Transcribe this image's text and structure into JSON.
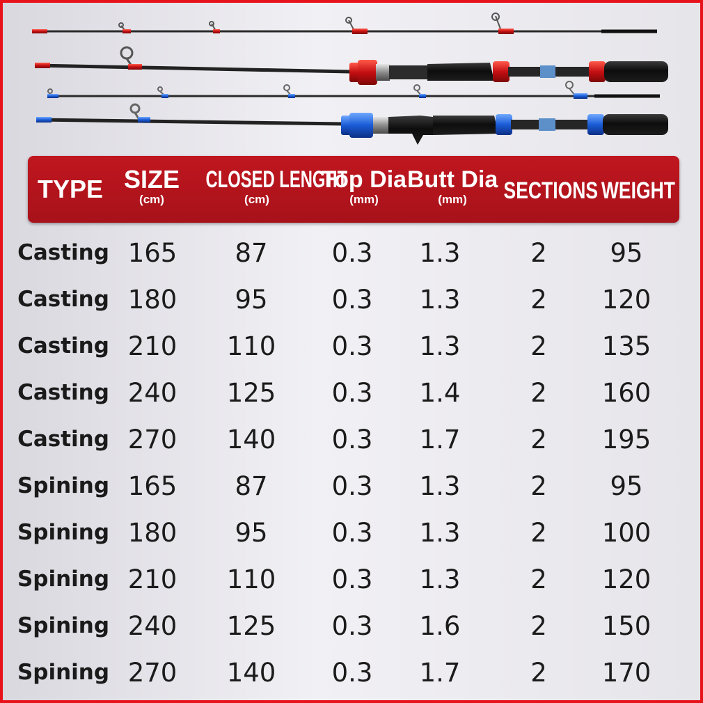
{
  "colors": {
    "border": "#e8121a",
    "header_background": "#b3141c",
    "header_text": "#ffffff",
    "casting_accent": "#d01818",
    "spinning_accent": "#1f5ad8",
    "text": "#1b1b1b"
  },
  "product_image": {
    "rods": [
      {
        "kind": "casting-tip",
        "accent": "red"
      },
      {
        "kind": "casting-butt",
        "accent": "red"
      },
      {
        "kind": "spinning-tip",
        "accent": "blue"
      },
      {
        "kind": "spinning-butt",
        "accent": "blue"
      }
    ]
  },
  "table": {
    "headers": [
      {
        "label": "TYPE",
        "unit": ""
      },
      {
        "label": "SIZE",
        "unit": "(cm)"
      },
      {
        "label": "CLOSED LENGHT",
        "unit": "(cm)"
      },
      {
        "label": "Top Dia",
        "unit": "(mm)"
      },
      {
        "label": "Butt Dia",
        "unit": "(mm)"
      },
      {
        "label": "SECTIONS",
        "unit": ""
      },
      {
        "label": "WEIGHT",
        "unit": ""
      }
    ],
    "rows": [
      [
        "Casting",
        "165",
        "87",
        "0.3",
        "1.3",
        "2",
        "95"
      ],
      [
        "Casting",
        "180",
        "95",
        "0.3",
        "1.3",
        "2",
        "120"
      ],
      [
        "Casting",
        "210",
        "110",
        "0.3",
        "1.3",
        "2",
        "135"
      ],
      [
        "Casting",
        "240",
        "125",
        "0.3",
        "1.4",
        "2",
        "160"
      ],
      [
        "Casting",
        "270",
        "140",
        "0.3",
        "1.7",
        "2",
        "195"
      ],
      [
        "Spining",
        "165",
        "87",
        "0.3",
        "1.3",
        "2",
        "95"
      ],
      [
        "Spining",
        "180",
        "95",
        "0.3",
        "1.3",
        "2",
        "100"
      ],
      [
        "Spining",
        "210",
        "110",
        "0.3",
        "1.3",
        "2",
        "120"
      ],
      [
        "Spining",
        "240",
        "125",
        "0.3",
        "1.6",
        "2",
        "150"
      ],
      [
        "Spining",
        "270",
        "140",
        "0.3",
        "1.7",
        "2",
        "170"
      ]
    ]
  }
}
